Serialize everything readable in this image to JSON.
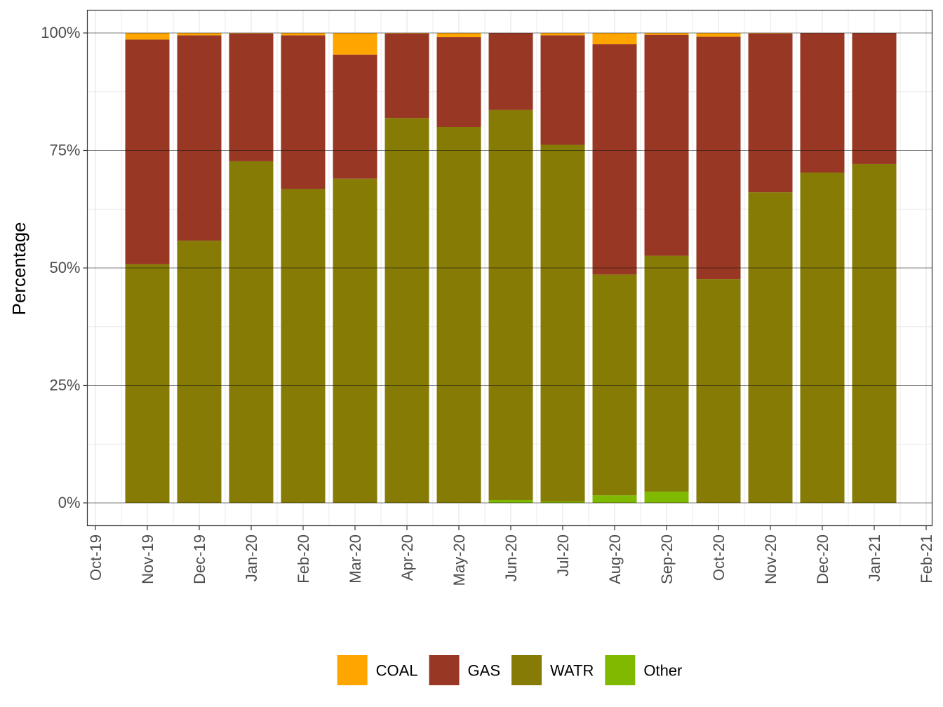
{
  "chart_data": {
    "type": "bar",
    "stacked": true,
    "title": "",
    "xlabel": "",
    "ylabel": "Percentage",
    "ylim": [
      0,
      100
    ],
    "y_ticks": [
      "0%",
      "25%",
      "50%",
      "75%",
      "100%"
    ],
    "x_ticks": [
      "Oct-19",
      "Nov-19",
      "Dec-19",
      "Jan-20",
      "Feb-20",
      "Mar-20",
      "Apr-20",
      "May-20",
      "Jun-20",
      "Jul-20",
      "Aug-20",
      "Sep-20",
      "Oct-20",
      "Nov-20",
      "Dec-20",
      "Jan-21",
      "Feb-21"
    ],
    "categories": [
      "2019-11",
      "2019-12",
      "2020-01",
      "2020-02",
      "2020-03",
      "2020-04",
      "2020-05",
      "2020-06",
      "2020-07",
      "2020-08",
      "2020-09",
      "2020-10",
      "2020-11",
      "2020-12",
      "2021-01"
    ],
    "series": [
      {
        "name": "Other",
        "color": "#7FBA00",
        "values": [
          0,
          0,
          0,
          0,
          0,
          0,
          0,
          0.6,
          0.3,
          1.6,
          2.4,
          0,
          0,
          0,
          0
        ]
      },
      {
        "name": "WATR",
        "color": "#857B05",
        "values": [
          50.8,
          55.8,
          72.7,
          66.8,
          69.0,
          81.9,
          80.0,
          83.0,
          75.9,
          47.0,
          50.2,
          47.6,
          66.1,
          70.3,
          72.1
        ]
      },
      {
        "name": "GAS",
        "color": "#983723",
        "values": [
          47.8,
          43.7,
          27.2,
          32.7,
          26.4,
          18.0,
          19.1,
          16.4,
          23.3,
          49.0,
          47.0,
          51.6,
          33.8,
          29.7,
          27.9
        ]
      },
      {
        "name": "COAL",
        "color": "#FFA500",
        "values": [
          1.4,
          0.5,
          0.1,
          0.5,
          4.6,
          0.1,
          0.9,
          0,
          0.5,
          2.4,
          0.4,
          0.8,
          0.1,
          0,
          0
        ]
      }
    ],
    "legend_order": [
      "COAL",
      "GAS",
      "WATR",
      "Other"
    ],
    "legend_position": "bottom",
    "grid": true
  }
}
